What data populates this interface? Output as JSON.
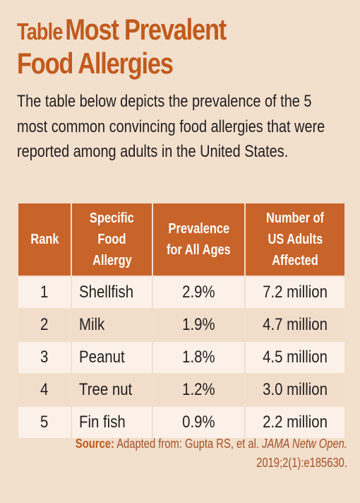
{
  "title": {
    "prefix": "Table",
    "line1": "Most Prevalent",
    "line2": "Food Allergies"
  },
  "intro": "The table below depicts the prevalence of the 5 most common convincing food allergies that were reported among adults in the United States.",
  "table": {
    "headers": [
      "Rank",
      "Specific Food Allergy",
      "Prevalence for All Ages",
      "Number of US Adults Affected"
    ],
    "header_lines": [
      [
        "Rank"
      ],
      [
        "Specific",
        "Food",
        "Allergy"
      ],
      [
        "Prevalence",
        "for All Ages"
      ],
      [
        "Number of",
        "US Adults",
        "Affected"
      ]
    ],
    "rows": [
      {
        "rank": "1",
        "food": "Shellfish",
        "prevalence": "2.9%",
        "adults": "7.2 million"
      },
      {
        "rank": "2",
        "food": "Milk",
        "prevalence": "1.9%",
        "adults": "4.7 million"
      },
      {
        "rank": "3",
        "food": "Peanut",
        "prevalence": "1.8%",
        "adults": "4.5 million"
      },
      {
        "rank": "4",
        "food": "Tree nut",
        "prevalence": "1.2%",
        "adults": "3.0 million"
      },
      {
        "rank": "5",
        "food": "Fin fish",
        "prevalence": "0.9%",
        "adults": "2.2 million"
      }
    ]
  },
  "source": {
    "label": "Source:",
    "text_before": "Adapted from: Gupta RS, et al.",
    "journal": "JAMA Netw Open.",
    "citation": "2019;2(1):e185630."
  },
  "colors": {
    "background": "#f2dfcc",
    "title": "#c15a1d",
    "header_fill": "#c8632a",
    "row_light": "#fbf1e8",
    "row_dark": "#f1ddca",
    "source_text": "#a4522a"
  }
}
